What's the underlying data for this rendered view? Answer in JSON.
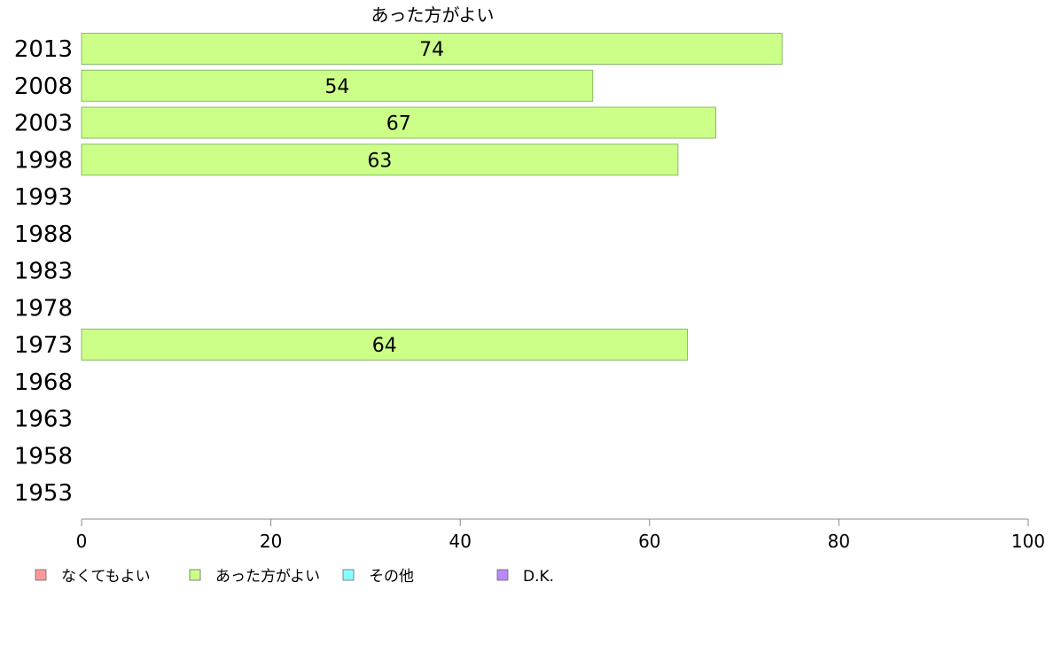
{
  "chart_data": {
    "type": "bar",
    "orientation": "horizontal",
    "title": "あった方がよい",
    "categories": [
      "2013",
      "2008",
      "2003",
      "1998",
      "1993",
      "1988",
      "1983",
      "1978",
      "1973",
      "1968",
      "1963",
      "1958",
      "1953"
    ],
    "values": [
      74,
      54,
      67,
      63,
      null,
      null,
      null,
      null,
      64,
      null,
      null,
      null,
      null
    ],
    "data_labels": [
      "74",
      "54",
      "67",
      "63",
      "",
      "",
      "",
      "",
      "64",
      "",
      "",
      "",
      ""
    ],
    "xlim": [
      0,
      100
    ],
    "x_ticks": [
      "0",
      "20",
      "40",
      "60",
      "80",
      "100"
    ],
    "xlabel": "",
    "ylabel": "",
    "bar_color": "#ccff88",
    "bar_border": "#88bb66",
    "legend_position": "bottom",
    "legend": [
      {
        "label": "なくてもよい",
        "color": "#ff9999"
      },
      {
        "label": "あった方がよい",
        "color": "#ccff88"
      },
      {
        "label": "その他",
        "color": "#88ffff"
      },
      {
        "label": "D.K.",
        "color": "#bb88ff"
      }
    ]
  }
}
